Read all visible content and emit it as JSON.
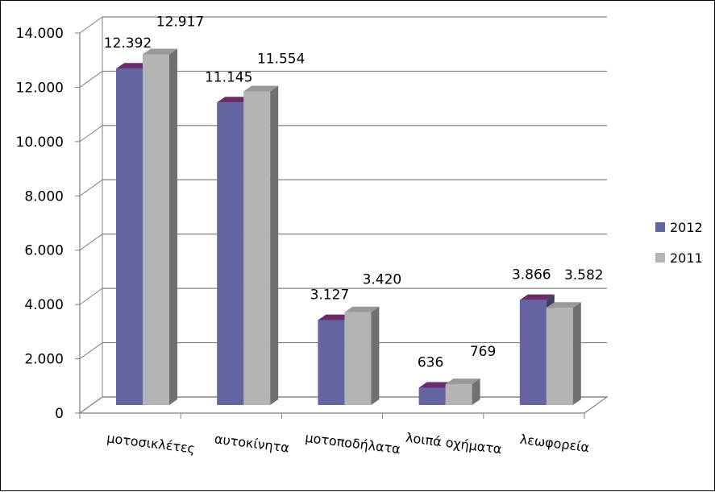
{
  "chart_data": {
    "type": "bar",
    "title": "",
    "xlabel": "",
    "ylabel": "",
    "ylim": [
      0,
      14000
    ],
    "y_ticks": [
      0,
      2000,
      4000,
      6000,
      8000,
      10000,
      12000,
      14000
    ],
    "y_tick_labels": [
      "0",
      "2.000",
      "4.000",
      "6.000",
      "8.000",
      "10.000",
      "12.000",
      "14.000"
    ],
    "grid": true,
    "legend_position": "right",
    "categories": [
      "μοτοσικλέτες",
      "αυτοκίνητα",
      "μοτοποδήλατα",
      "λοιπά οχήματα",
      "λεωφορεία"
    ],
    "series": [
      {
        "name": "2012",
        "color": "#6464A0",
        "values": [
          12392,
          11145,
          3127,
          636,
          3866
        ],
        "labels": [
          "12.392",
          "11.145",
          "3.127",
          "636",
          "3.866"
        ]
      },
      {
        "name": "2011",
        "color": "#B4B4B4",
        "values": [
          12917,
          11554,
          3420,
          769,
          3582
        ],
        "labels": [
          "12.917",
          "11.554",
          "3.420",
          "769",
          "3.582"
        ]
      }
    ]
  }
}
